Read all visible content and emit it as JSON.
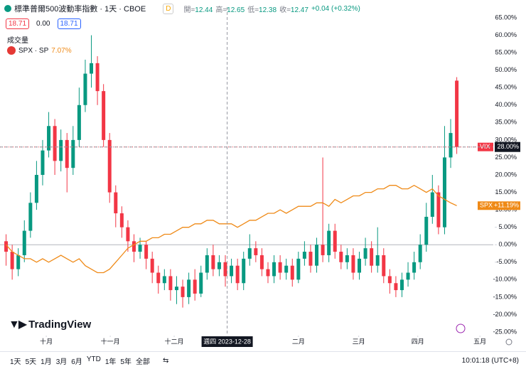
{
  "header": {
    "title": "標準普爾500波動率指數 · 1天 · CBOE",
    "badge": "D",
    "ohlc": [
      {
        "label": "開",
        "value": 12.44
      },
      {
        "label": "高",
        "value": 12.65
      },
      {
        "label": "低",
        "value": 12.38
      },
      {
        "label": "收",
        "value": 12.47
      }
    ],
    "change": "+0.04 (+0.32%)",
    "sell": "18.71",
    "spread": "0.00",
    "buy": "18.71",
    "volume": "成交量",
    "compare_name": "SPX · SP",
    "compare_change": "7.07%"
  },
  "chart_data": {
    "type": "candlestick",
    "symbol": "VIX",
    "open": [
      1,
      -2,
      -7,
      -3,
      4,
      12,
      20,
      27,
      34,
      24,
      30,
      22,
      30,
      40,
      49,
      52,
      44,
      30,
      15,
      9,
      5,
      1,
      -2,
      0,
      -4,
      -8,
      -11,
      -9,
      -13,
      -12,
      -15,
      -10,
      -14,
      -8,
      -3,
      -7,
      -5,
      -9,
      -6,
      -11,
      -4,
      -1,
      -3,
      -7,
      -9,
      -5,
      -8,
      -6,
      -10,
      -4,
      -2,
      -6,
      0,
      -3,
      4,
      -2,
      -5,
      -3,
      -8,
      -4,
      -1,
      -6,
      -3,
      -9,
      -11,
      -13,
      -10,
      -8,
      -5,
      0,
      8,
      15,
      5,
      25,
      47
    ],
    "high": [
      3,
      0,
      -1,
      7,
      15,
      24,
      30,
      38,
      36,
      33,
      32,
      34,
      45,
      53,
      60,
      54,
      46,
      32,
      17,
      11,
      7,
      3,
      2,
      1,
      -2,
      -6,
      -7,
      -7,
      -9,
      -10,
      -8,
      -7,
      -6,
      -1,
      0,
      -3,
      -3,
      -4,
      -4,
      -2,
      3,
      1,
      -1,
      -5,
      -3,
      -3,
      -4,
      -4,
      -2,
      1,
      0,
      2,
      25,
      6,
      6,
      0,
      -1,
      -1,
      -2,
      2,
      1,
      5,
      -1,
      -7,
      -9,
      -8,
      -5,
      -2,
      3,
      12,
      20,
      17,
      34,
      36,
      48
    ],
    "low": [
      -6,
      -10,
      -9,
      -5,
      2,
      10,
      17,
      25,
      20,
      21,
      15,
      20,
      28,
      38,
      45,
      40,
      28,
      12,
      5,
      2,
      -2,
      -5,
      -4,
      -7,
      -11,
      -14,
      -13,
      -16,
      -17,
      -18,
      -17,
      -16,
      -15,
      -10,
      -9,
      -9,
      -12,
      -11,
      -13,
      -13,
      -6,
      -5,
      -9,
      -11,
      -11,
      -10,
      -10,
      -12,
      -11,
      -6,
      -8,
      -8,
      -5,
      -5,
      -4,
      -7,
      -7,
      -10,
      -10,
      -6,
      -8,
      -8,
      -11,
      -14,
      -15,
      -15,
      -12,
      -10,
      -7,
      -2,
      6,
      3,
      3,
      22,
      26
    ],
    "close": [
      -2,
      -7,
      -3,
      4,
      12,
      20,
      27,
      34,
      24,
      30,
      22,
      30,
      40,
      49,
      52,
      44,
      30,
      15,
      9,
      5,
      1,
      -2,
      0,
      -4,
      -8,
      -11,
      -9,
      -13,
      -12,
      -15,
      -10,
      -14,
      -8,
      -3,
      -7,
      -5,
      -9,
      -6,
      -11,
      -4,
      -1,
      -3,
      -7,
      -9,
      -5,
      -8,
      -6,
      -10,
      -4,
      -2,
      -6,
      0,
      -3,
      4,
      -2,
      -5,
      -3,
      -8,
      -4,
      -1,
      -6,
      -3,
      -9,
      -11,
      -13,
      -10,
      -8,
      -5,
      0,
      8,
      15,
      5,
      25,
      32,
      28
    ],
    "up_color": "#089981",
    "down_color": "#f23645",
    "series": [
      {
        "name": "SPX",
        "color": "#ef8a17",
        "last_label": "+11.19%",
        "values": [
          0,
          -2,
          -3,
          -4,
          -4,
          -5,
          -4,
          -5,
          -4,
          -3,
          -4,
          -5,
          -4,
          -6,
          -7,
          -8,
          -8,
          -7,
          -5,
          -3,
          -1,
          0,
          1,
          1,
          2,
          2,
          3,
          3,
          4,
          5,
          5,
          6,
          6,
          7,
          7,
          6,
          6,
          6,
          5,
          6,
          7,
          7,
          8,
          9,
          9,
          10,
          9,
          10,
          11,
          11,
          11,
          12,
          12,
          11,
          13,
          12,
          13,
          14,
          14,
          15,
          15,
          16,
          16,
          17,
          17,
          16,
          16,
          17,
          16,
          15,
          16,
          14,
          13,
          12,
          11.19
        ]
      }
    ],
    "xlim": [
      -1,
      80
    ],
    "xticks": [
      {
        "value": 6.6,
        "label": "十月"
      },
      {
        "value": 17.1,
        "label": "十一月"
      },
      {
        "value": 27.6,
        "label": "十二月"
      },
      {
        "value": 48,
        "label": "二月"
      },
      {
        "value": 57.9,
        "label": "三月"
      },
      {
        "value": 67.6,
        "label": "四月"
      },
      {
        "value": 77.8,
        "label": "五月"
      }
    ],
    "ylim": [
      -25,
      65
    ],
    "yticks": [
      {
        "value": 65,
        "label": "65.00%"
      },
      {
        "value": 60,
        "label": "60.00%"
      },
      {
        "value": 55,
        "label": "55.00%"
      },
      {
        "value": 50,
        "label": "50.00%"
      },
      {
        "value": 45,
        "label": "45.00%"
      },
      {
        "value": 40,
        "label": "40.00%"
      },
      {
        "value": 35,
        "label": "35.00%"
      },
      {
        "value": 30,
        "label": "30.00%"
      },
      {
        "value": 25,
        "label": "25.00%"
      },
      {
        "value": 20,
        "label": "20.00%"
      },
      {
        "value": 15,
        "label": "15.00%"
      },
      {
        "value": 10,
        "label": "10.00%"
      },
      {
        "value": 5,
        "label": "5.00%"
      },
      {
        "value": 0,
        "label": "0.00%"
      },
      {
        "value": -5,
        "label": "-5.00%"
      },
      {
        "value": -10,
        "label": "-10.00%"
      },
      {
        "value": -15,
        "label": "-15.00%"
      },
      {
        "value": -20,
        "label": "-20.00%"
      },
      {
        "value": -25,
        "label": "-25.00%"
      }
    ],
    "grid": false,
    "crosshair": {
      "x": 36.3,
      "x_label": "週四 2023-12-28",
      "y": 28,
      "y_label": "28.00%"
    }
  },
  "footer": {
    "ranges": [
      "1天",
      "5天",
      "1月",
      "3月",
      "6月",
      "YTD",
      "1年",
      "5年",
      "全部"
    ],
    "time": "10:01:18 (UTC+8)",
    "logo": "TradingView"
  }
}
